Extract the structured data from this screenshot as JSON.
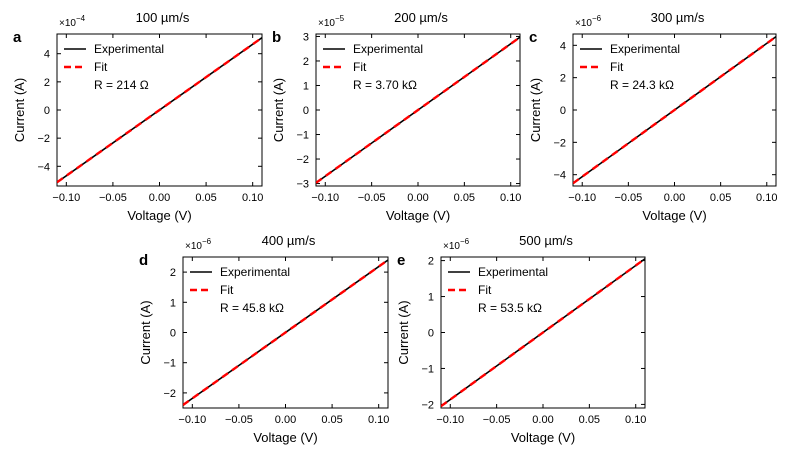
{
  "colors": {
    "experimental": "#000000",
    "fit": "#ff0000",
    "axis": "#000000"
  },
  "chart_data": [
    {
      "panel_label": "a",
      "title": "100 µm/s",
      "type": "line",
      "x_multiplier_label": "",
      "y_multiplier": "×10",
      "y_exponent": "−4",
      "xlabel": "Voltage (V)",
      "ylabel": "Current (A)",
      "xlim": [
        -0.11,
        0.11
      ],
      "ylim": [
        -5.4,
        5.4
      ],
      "xticks": [
        -0.1,
        -0.05,
        0.0,
        0.05,
        0.1
      ],
      "xtick_labels": [
        "−0.10",
        "−0.05",
        "0.00",
        "0.05",
        "0.10"
      ],
      "yticks": [
        -4,
        -2,
        0,
        2,
        4
      ],
      "ytick_labels": [
        "−4",
        "−2",
        "0",
        "2",
        "4"
      ],
      "legend": [
        "Experimental",
        "Fit"
      ],
      "annotation": "R = 214 Ω",
      "series": [
        {
          "name": "Experimental",
          "x": [
            -0.11,
            0.11
          ],
          "y": [
            -5.14,
            5.14
          ]
        },
        {
          "name": "Fit",
          "x": [
            -0.11,
            0.11
          ],
          "y": [
            -5.14,
            5.14
          ]
        }
      ]
    },
    {
      "panel_label": "b",
      "title": "200 µm/s",
      "type": "line",
      "y_multiplier": "×10",
      "y_exponent": "−5",
      "xlabel": "Voltage (V)",
      "ylabel": "Current (A)",
      "xlim": [
        -0.11,
        0.11
      ],
      "ylim": [
        -3.1,
        3.1
      ],
      "xticks": [
        -0.1,
        -0.05,
        0.0,
        0.05,
        0.1
      ],
      "xtick_labels": [
        "−0.10",
        "−0.05",
        "0.00",
        "0.05",
        "0.10"
      ],
      "yticks": [
        -3,
        -2,
        -1,
        0,
        1,
        2,
        3
      ],
      "ytick_labels": [
        "−3",
        "−2",
        "−1",
        "0",
        "1",
        "2",
        "3"
      ],
      "legend": [
        "Experimental",
        "Fit"
      ],
      "annotation": "R = 3.70 kΩ",
      "series": [
        {
          "name": "Experimental",
          "x": [
            -0.11,
            0.11
          ],
          "y": [
            -2.97,
            2.97
          ]
        },
        {
          "name": "Fit",
          "x": [
            -0.11,
            0.11
          ],
          "y": [
            -2.97,
            2.97
          ]
        }
      ]
    },
    {
      "panel_label": "c",
      "title": "300 µm/s",
      "type": "line",
      "y_multiplier": "×10",
      "y_exponent": "−6",
      "xlabel": "Voltage (V)",
      "ylabel": "Current (A)",
      "xlim": [
        -0.11,
        0.11
      ],
      "ylim": [
        -4.7,
        4.7
      ],
      "xticks": [
        -0.1,
        -0.05,
        0.0,
        0.05,
        0.1
      ],
      "xtick_labels": [
        "−0.10",
        "−0.05",
        "0.00",
        "0.05",
        "0.10"
      ],
      "yticks": [
        -4,
        -2,
        0,
        2,
        4
      ],
      "ytick_labels": [
        "−4",
        "−2",
        "0",
        "2",
        "4"
      ],
      "legend": [
        "Experimental",
        "Fit"
      ],
      "annotation": "R = 24.3 kΩ",
      "series": [
        {
          "name": "Experimental",
          "x": [
            -0.11,
            0.11
          ],
          "y": [
            -4.53,
            4.53
          ]
        },
        {
          "name": "Fit",
          "x": [
            -0.11,
            0.11
          ],
          "y": [
            -4.53,
            4.53
          ]
        }
      ]
    },
    {
      "panel_label": "d",
      "title": "400 µm/s",
      "type": "line",
      "y_multiplier": "×10",
      "y_exponent": "−6",
      "xlabel": "Voltage (V)",
      "ylabel": "Current (A)",
      "xlim": [
        -0.11,
        0.11
      ],
      "ylim": [
        -2.5,
        2.5
      ],
      "xticks": [
        -0.1,
        -0.05,
        0.0,
        0.05,
        0.1
      ],
      "xtick_labels": [
        "−0.10",
        "−0.05",
        "0.00",
        "0.05",
        "0.10"
      ],
      "yticks": [
        -2,
        -1,
        0,
        1,
        2
      ],
      "ytick_labels": [
        "−2",
        "−1",
        "0",
        "1",
        "2"
      ],
      "legend": [
        "Experimental",
        "Fit"
      ],
      "annotation": "R = 45.8 kΩ",
      "series": [
        {
          "name": "Experimental",
          "x": [
            -0.11,
            0.11
          ],
          "y": [
            -2.4,
            2.4
          ]
        },
        {
          "name": "Fit",
          "x": [
            -0.11,
            0.11
          ],
          "y": [
            -2.4,
            2.4
          ]
        }
      ]
    },
    {
      "panel_label": "e",
      "title": "500 µm/s",
      "type": "line",
      "y_multiplier": "×10",
      "y_exponent": "−6",
      "xlabel": "Voltage (V)",
      "ylabel": "Current (A)",
      "xlim": [
        -0.11,
        0.11
      ],
      "ylim": [
        -2.1,
        2.1
      ],
      "xticks": [
        -0.1,
        -0.05,
        0.0,
        0.05,
        0.1
      ],
      "xtick_labels": [
        "−0.10",
        "−0.05",
        "0.00",
        "0.05",
        "0.10"
      ],
      "yticks": [
        -2,
        -1,
        0,
        1,
        2
      ],
      "ytick_labels": [
        "−2",
        "−1",
        "0",
        "1",
        "2"
      ],
      "legend": [
        "Experimental",
        "Fit"
      ],
      "annotation": "R = 53.5 kΩ",
      "series": [
        {
          "name": "Experimental",
          "x": [
            -0.11,
            0.11
          ],
          "y": [
            -2.05,
            2.05
          ]
        },
        {
          "name": "Fit",
          "x": [
            -0.11,
            0.11
          ],
          "y": [
            -2.05,
            2.05
          ]
        }
      ]
    }
  ]
}
